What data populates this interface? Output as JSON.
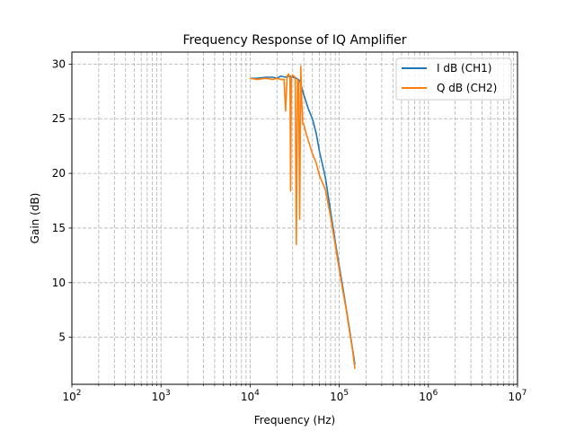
{
  "chart_data": {
    "type": "line",
    "title": "Frequency Response of IQ Amplifier",
    "xlabel": "Frequency (Hz)",
    "ylabel": "Gain (dB)",
    "xscale": "log",
    "xlim": [
      100,
      10000000
    ],
    "ylim": [
      0.7,
      31.1
    ],
    "x_ticks": [
      {
        "value": 100,
        "base": "10",
        "exp": "2"
      },
      {
        "value": 1000,
        "base": "10",
        "exp": "3"
      },
      {
        "value": 10000,
        "base": "10",
        "exp": "4"
      },
      {
        "value": 100000,
        "base": "10",
        "exp": "5"
      },
      {
        "value": 1000000,
        "base": "10",
        "exp": "6"
      },
      {
        "value": 10000000,
        "base": "10",
        "exp": "7"
      }
    ],
    "y_ticks": [
      5,
      10,
      15,
      20,
      25,
      30
    ],
    "grid": "major and minor, dashed",
    "legend_position": "top-right",
    "colors": {
      "ch1": "#1f77b4",
      "ch2": "#ff7f0e",
      "grid": "#b0b0b0"
    },
    "series": [
      {
        "name": "I dB (CH1)",
        "color": "#1f77b4",
        "x": [
          10000,
          12000,
          15000,
          18000,
          20000,
          22000,
          25000,
          28000,
          30000,
          33000,
          36000,
          40000,
          45000,
          50000,
          55000,
          60000,
          70000,
          80000,
          90000,
          100000,
          110000,
          120000,
          130000,
          140000,
          150000
        ],
        "y": [
          28.7,
          28.7,
          28.8,
          28.8,
          28.7,
          28.9,
          28.8,
          28.9,
          28.8,
          28.7,
          28.5,
          27.2,
          25.9,
          25.0,
          23.7,
          22.0,
          19.6,
          16.5,
          13.8,
          11.5,
          9.5,
          7.6,
          5.8,
          4.1,
          2.5
        ]
      },
      {
        "name": "Q dB (CH2)",
        "color": "#ff7f0e",
        "x": [
          10000,
          12000,
          15000,
          18000,
          20000,
          22000,
          24000,
          25000,
          26000,
          27000,
          28000,
          28500,
          29000,
          30000,
          32000,
          33000,
          34000,
          35000,
          36000,
          37000,
          38000,
          39000,
          40000,
          42000,
          45000,
          50000,
          55000,
          60000,
          70000,
          80000,
          90000,
          100000,
          110000,
          120000,
          130000,
          140000,
          150000
        ],
        "y": [
          28.7,
          28.6,
          28.7,
          28.6,
          28.7,
          28.6,
          28.6,
          25.7,
          28.9,
          29.1,
          28.7,
          18.4,
          28.8,
          29.0,
          28.8,
          13.5,
          28.6,
          28.4,
          15.8,
          29.8,
          26.5,
          24.5,
          24.5,
          23.8,
          23.0,
          21.8,
          21.0,
          19.8,
          18.5,
          16.0,
          13.5,
          11.2,
          9.2,
          7.5,
          5.6,
          4.0,
          2.1
        ]
      }
    ]
  }
}
